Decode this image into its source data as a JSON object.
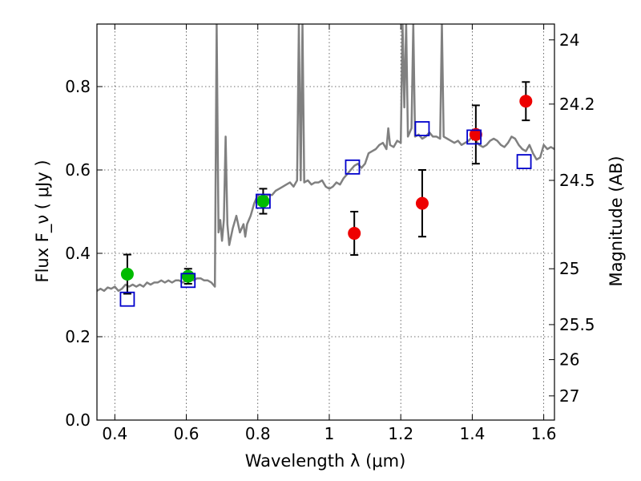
{
  "chart_data": {
    "type": "scatter",
    "title": "",
    "xlabel": "Wavelength  λ (μm)",
    "ylabel": "Flux  F_ν  ( μJy )",
    "ylabel_right": "Magnitude (AB)",
    "xlim": [
      0.35,
      1.63
    ],
    "ylim": [
      0.0,
      0.95
    ],
    "grid": true,
    "x_ticks": [
      0.4,
      0.6,
      0.8,
      1.0,
      1.2,
      1.4,
      1.6
    ],
    "x_tick_labels": [
      "0.4",
      "0.6",
      "0.8",
      "1",
      "1.2",
      "1.4",
      "1.6"
    ],
    "y_ticks": [
      0.0,
      0.2,
      0.4,
      0.6,
      0.8
    ],
    "y_tick_labels": [
      "0.0",
      "0.2",
      "0.4",
      "0.6",
      "0.8"
    ],
    "right_ticks": [
      {
        "label": "24",
        "flux": 0.912
      },
      {
        "label": "24.2",
        "flux": 0.758
      },
      {
        "label": "24.5",
        "flux": 0.575
      },
      {
        "label": "25",
        "flux": 0.363
      },
      {
        "label": "25.5",
        "flux": 0.229
      },
      {
        "label": "26",
        "flux": 0.145
      },
      {
        "label": "27",
        "flux": 0.058
      }
    ],
    "series": [
      {
        "kind": "line",
        "color": "#808080",
        "x": [
          0.35,
          0.36,
          0.37,
          0.38,
          0.39,
          0.4,
          0.41,
          0.42,
          0.43,
          0.44,
          0.45,
          0.46,
          0.47,
          0.48,
          0.49,
          0.5,
          0.51,
          0.52,
          0.53,
          0.54,
          0.55,
          0.56,
          0.57,
          0.58,
          0.59,
          0.6,
          0.61,
          0.62,
          0.63,
          0.64,
          0.65,
          0.66,
          0.67,
          0.68,
          0.685,
          0.69,
          0.695,
          0.7,
          0.705,
          0.71,
          0.715,
          0.72,
          0.73,
          0.74,
          0.75,
          0.76,
          0.765,
          0.77,
          0.78,
          0.79,
          0.8,
          0.81,
          0.82,
          0.83,
          0.84,
          0.85,
          0.86,
          0.87,
          0.88,
          0.89,
          0.9,
          0.91,
          0.915,
          0.92,
          0.925,
          0.93,
          0.94,
          0.95,
          0.96,
          0.97,
          0.98,
          0.99,
          1.0,
          1.01,
          1.02,
          1.03,
          1.04,
          1.05,
          1.06,
          1.07,
          1.08,
          1.09,
          1.1,
          1.11,
          1.12,
          1.13,
          1.14,
          1.15,
          1.16,
          1.165,
          1.17,
          1.18,
          1.19,
          1.2,
          1.205,
          1.21,
          1.215,
          1.22,
          1.23,
          1.235,
          1.24,
          1.25,
          1.26,
          1.27,
          1.28,
          1.29,
          1.3,
          1.31,
          1.315,
          1.32,
          1.33,
          1.34,
          1.35,
          1.36,
          1.37,
          1.38,
          1.39,
          1.4,
          1.41,
          1.42,
          1.43,
          1.44,
          1.45,
          1.46,
          1.47,
          1.48,
          1.49,
          1.5,
          1.51,
          1.52,
          1.53,
          1.54,
          1.55,
          1.56,
          1.57,
          1.58,
          1.59,
          1.6,
          1.61,
          1.62,
          1.63
        ],
        "y": [
          0.31,
          0.315,
          0.31,
          0.318,
          0.315,
          0.32,
          0.31,
          0.315,
          0.325,
          0.32,
          0.325,
          0.32,
          0.325,
          0.32,
          0.33,
          0.325,
          0.33,
          0.33,
          0.335,
          0.33,
          0.335,
          0.33,
          0.335,
          0.335,
          0.33,
          0.335,
          0.34,
          0.335,
          0.34,
          0.34,
          0.335,
          0.335,
          0.33,
          0.32,
          0.95,
          0.45,
          0.48,
          0.43,
          0.48,
          0.68,
          0.47,
          0.42,
          0.46,
          0.49,
          0.45,
          0.47,
          0.44,
          0.47,
          0.49,
          0.52,
          0.54,
          0.53,
          0.535,
          0.54,
          0.54,
          0.55,
          0.555,
          0.56,
          0.565,
          0.57,
          0.56,
          0.575,
          0.95,
          0.575,
          0.95,
          0.57,
          0.575,
          0.565,
          0.57,
          0.57,
          0.575,
          0.56,
          0.555,
          0.56,
          0.57,
          0.565,
          0.58,
          0.59,
          0.6,
          0.61,
          0.615,
          0.605,
          0.615,
          0.64,
          0.645,
          0.65,
          0.66,
          0.665,
          0.65,
          0.7,
          0.66,
          0.655,
          0.67,
          0.665,
          0.95,
          0.75,
          0.95,
          0.68,
          0.7,
          0.95,
          0.68,
          0.685,
          0.675,
          0.68,
          0.69,
          0.68,
          0.68,
          0.675,
          0.95,
          0.68,
          0.675,
          0.67,
          0.665,
          0.67,
          0.66,
          0.665,
          0.67,
          0.68,
          0.67,
          0.66,
          0.655,
          0.66,
          0.67,
          0.675,
          0.67,
          0.66,
          0.655,
          0.665,
          0.68,
          0.675,
          0.66,
          0.65,
          0.645,
          0.66,
          0.64,
          0.625,
          0.63,
          0.66,
          0.65,
          0.655,
          0.65
        ]
      },
      {
        "kind": "open-square",
        "color": "#0000cc",
        "x": [
          0.435,
          0.605,
          0.815,
          1.065,
          1.26,
          1.405,
          1.545
        ],
        "y": [
          0.29,
          0.335,
          0.525,
          0.607,
          0.699,
          0.679,
          0.62
        ]
      },
      {
        "kind": "filled-circle-errorbar",
        "color": "#00bb00",
        "x": [
          0.435,
          0.605,
          0.815
        ],
        "y": [
          0.35,
          0.345,
          0.525
        ],
        "err": [
          0.047,
          0.018,
          0.03
        ]
      },
      {
        "kind": "filled-circle-errorbar",
        "color": "#ee0000",
        "x": [
          1.07,
          1.26,
          1.41,
          1.55
        ],
        "y": [
          0.448,
          0.52,
          0.685,
          0.765
        ],
        "err": [
          0.052,
          0.08,
          0.07,
          0.046
        ]
      }
    ]
  }
}
